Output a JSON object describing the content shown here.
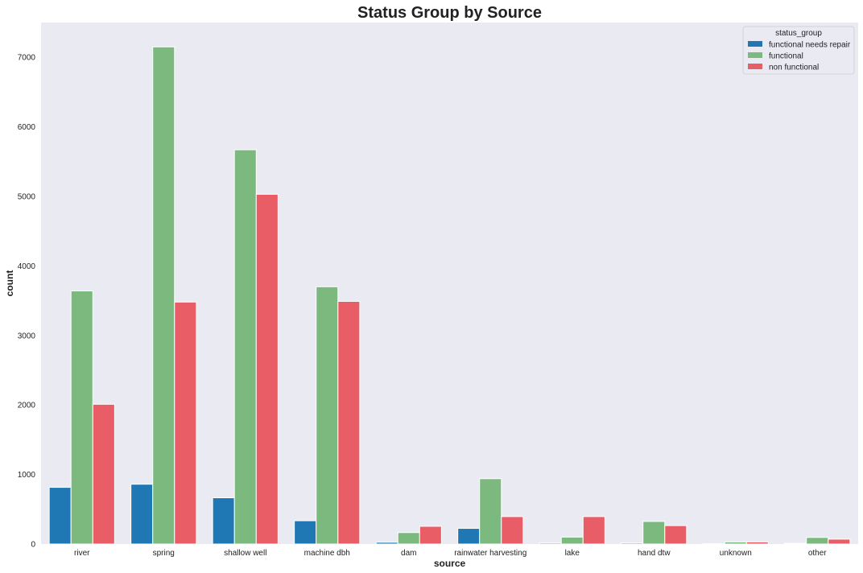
{
  "chart_data": {
    "type": "bar",
    "title": "Status Group by Source",
    "xlabel": "source",
    "ylabel": "count",
    "categories": [
      "river",
      "spring",
      "shallow well",
      "machine dbh",
      "dam",
      "rainwater harvesting",
      "lake",
      "hand dtw",
      "unknown",
      "other"
    ],
    "series": [
      {
        "name": "functional needs repair",
        "color": "#1f77b4",
        "values": [
          815,
          860,
          665,
          335,
          25,
          225,
          15,
          15,
          5,
          10
        ]
      },
      {
        "name": "functional",
        "color": "#7cb97f",
        "values": [
          3640,
          7150,
          5670,
          3700,
          165,
          940,
          100,
          325,
          30,
          95
        ]
      },
      {
        "name": "non functional",
        "color": "#e95e66",
        "values": [
          2010,
          3480,
          5030,
          3490,
          255,
          395,
          395,
          265,
          30,
          70
        ]
      }
    ],
    "yticks": [
      0,
      1000,
      2000,
      3000,
      4000,
      5000,
      6000,
      7000
    ],
    "ylim": [
      0,
      7500
    ],
    "grid": false,
    "legend": {
      "title": "status_group",
      "position": "top-right"
    },
    "background": "#eaeaf2"
  }
}
